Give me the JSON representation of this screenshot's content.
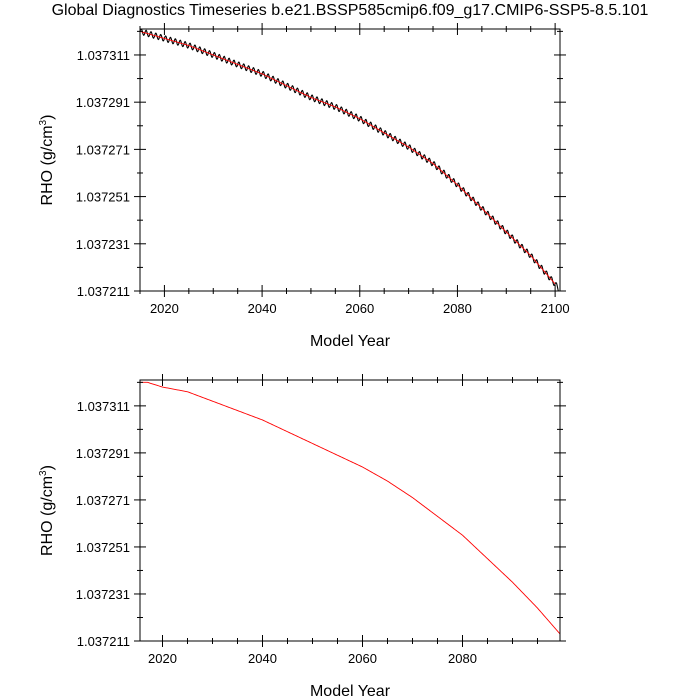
{
  "title": "Global Diagnostics Timeseries b.e21.BSSP585cmip6.f09_g17.CMIP6-SSP5-8.5.101",
  "chart_data": [
    {
      "type": "line",
      "xlabel": "Model Year",
      "ylabel": "RHO (g/cm",
      "ylabel_superscript": "3",
      "ylabel_suffix": ")",
      "xlim": [
        2015,
        2101
      ],
      "ylim": [
        1.037211,
        1.037322
      ],
      "x_ticks": [
        2020,
        2040,
        2060,
        2080,
        2100
      ],
      "x_tick_labels": [
        "2020",
        "2040",
        "2060",
        "2080",
        "2100"
      ],
      "y_ticks": [
        1.037211,
        1.037231,
        1.037251,
        1.037271,
        1.037291,
        1.037311
      ],
      "y_tick_labels": [
        "1.037211",
        "1.037231",
        "1.037251",
        "1.037271",
        "1.037291",
        "1.037311"
      ],
      "grid": false,
      "series": [
        {
          "color": "#000000",
          "style": "monthly, seasonal oscillation",
          "x": [
            2015,
            2020,
            2025,
            2030,
            2035,
            2040,
            2045,
            2050,
            2055,
            2060,
            2065,
            2070,
            2075,
            2080,
            2085,
            2090,
            2095,
            2100,
            2101
          ],
          "values": [
            1.037321,
            1.037318,
            1.037315,
            1.037311,
            1.037307,
            1.037303,
            1.037298,
            1.037293,
            1.037289,
            1.037284,
            1.037278,
            1.037272,
            1.037265,
            1.037256,
            1.037246,
            1.037236,
            1.037226,
            1.037214,
            1.037211
          ]
        },
        {
          "color": "#ff0000",
          "style": "annual mean",
          "x": [
            2015,
            2020,
            2025,
            2030,
            2035,
            2040,
            2045,
            2050,
            2055,
            2060,
            2065,
            2070,
            2075,
            2080,
            2085,
            2090,
            2095,
            2100
          ],
          "values": [
            1.037321,
            1.037318,
            1.037315,
            1.037311,
            1.037307,
            1.037303,
            1.037298,
            1.037293,
            1.037289,
            1.037284,
            1.037278,
            1.037272,
            1.037265,
            1.037256,
            1.037246,
            1.037236,
            1.037226,
            1.037214
          ]
        }
      ]
    },
    {
      "type": "line",
      "xlabel": "Model Year",
      "ylabel": "RHO (g/cm",
      "ylabel_superscript": "3",
      "ylabel_suffix": ")",
      "xlim": [
        2015.5,
        2099.5
      ],
      "ylim": [
        1.037211,
        1.037322
      ],
      "x_ticks": [
        2020,
        2040,
        2060,
        2080
      ],
      "x_tick_labels": [
        "2020",
        "2040",
        "2060",
        "2080"
      ],
      "y_ticks": [
        1.037211,
        1.037231,
        1.037251,
        1.037271,
        1.037291,
        1.037311
      ],
      "y_tick_labels": [
        "1.037211",
        "1.037231",
        "1.037251",
        "1.037271",
        "1.037291",
        "1.037311"
      ],
      "grid": false,
      "series": [
        {
          "color": "#ff0000",
          "style": "annual mean",
          "x": [
            2015.5,
            2017,
            2020,
            2025,
            2030,
            2035,
            2040,
            2045,
            2050,
            2055,
            2060,
            2065,
            2070,
            2075,
            2080,
            2085,
            2090,
            2095,
            2099.5
          ],
          "values": [
            1.037321,
            1.037321,
            1.037319,
            1.037317,
            1.037313,
            1.037309,
            1.037305,
            1.0373,
            1.037295,
            1.03729,
            1.037285,
            1.037279,
            1.037272,
            1.037264,
            1.037256,
            1.037246,
            1.037236,
            1.037225,
            1.037214
          ]
        }
      ]
    }
  ]
}
